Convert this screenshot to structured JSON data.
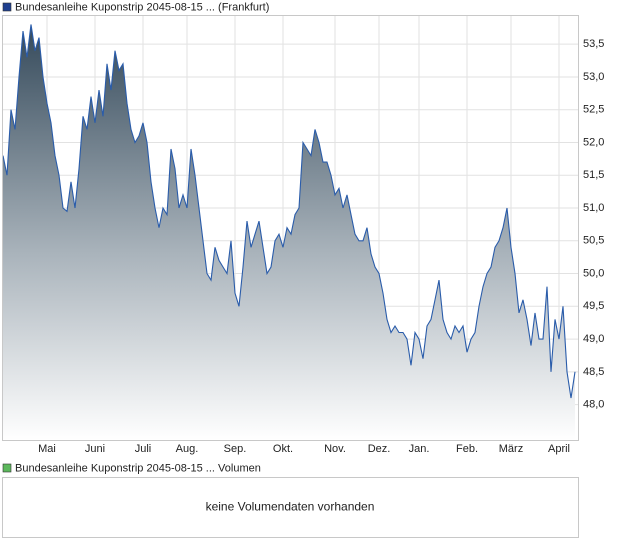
{
  "chart_data": {
    "type": "area",
    "legend_color": "#1f3f8f",
    "categories": [
      null,
      null,
      null,
      null,
      null,
      null,
      null,
      null,
      null,
      null,
      null,
      "Mai",
      null,
      null,
      null,
      null,
      null,
      null,
      null,
      null,
      null,
      null,
      null,
      "Juni",
      null,
      null,
      null,
      null,
      null,
      null,
      null,
      null,
      null,
      null,
      null,
      "Juli",
      null,
      null,
      null,
      null,
      null,
      null,
      null,
      null,
      null,
      null,
      "Aug.",
      null,
      null,
      null,
      null,
      null,
      null,
      null,
      null,
      null,
      null,
      null,
      "Sep.",
      null,
      null,
      null,
      null,
      null,
      null,
      null,
      null,
      null,
      null,
      null,
      "Okt.",
      null,
      null,
      null,
      null,
      null,
      null,
      null,
      null,
      null,
      null,
      null,
      null,
      "Nov.",
      null,
      null,
      null,
      null,
      null,
      null,
      null,
      null,
      null,
      null,
      "Dez.",
      null,
      null,
      null,
      null,
      null,
      null,
      null,
      null,
      null,
      "Jan.",
      null,
      null,
      null,
      null,
      null,
      null,
      null,
      null,
      null,
      null,
      null,
      "Feb.",
      null,
      null,
      null,
      null,
      null,
      null,
      null,
      null,
      null,
      null,
      "März",
      null,
      null,
      null,
      null,
      null,
      null,
      null,
      null,
      null,
      null,
      null,
      "April",
      null,
      null,
      null,
      null
    ],
    "series": [
      {
        "name": "Bundesanleihe Kuponstrip 2045-08-15  ... (Frankfurt)",
        "color": "#2a5caa",
        "values": [
          51.8,
          51.5,
          52.5,
          52.2,
          53.0,
          53.7,
          53.3,
          53.8,
          53.4,
          53.6,
          53.0,
          52.6,
          52.3,
          51.8,
          51.5,
          51.0,
          50.95,
          51.4,
          51.0,
          51.6,
          52.4,
          52.2,
          52.7,
          52.3,
          52.8,
          52.4,
          53.2,
          52.8,
          53.4,
          53.1,
          53.2,
          52.6,
          52.2,
          52.0,
          52.1,
          52.3,
          52.0,
          51.4,
          51.0,
          50.7,
          51.0,
          50.9,
          51.9,
          51.6,
          51.0,
          51.2,
          51.0,
          51.9,
          51.5,
          51.0,
          50.5,
          50.0,
          49.9,
          50.4,
          50.2,
          50.1,
          50.0,
          50.5,
          49.7,
          49.5,
          50.1,
          50.8,
          50.4,
          50.6,
          50.8,
          50.4,
          50.0,
          50.1,
          50.5,
          50.6,
          50.4,
          50.7,
          50.6,
          50.9,
          51.0,
          52.0,
          51.9,
          51.8,
          52.2,
          52.0,
          51.7,
          51.7,
          51.5,
          51.2,
          51.3,
          51.0,
          51.2,
          50.9,
          50.6,
          50.5,
          50.5,
          50.7,
          50.3,
          50.1,
          50.0,
          49.7,
          49.3,
          49.1,
          49.2,
          49.1,
          49.1,
          49.0,
          48.6,
          49.1,
          49.0,
          48.7,
          49.2,
          49.3,
          49.6,
          49.9,
          49.3,
          49.1,
          49.0,
          49.2,
          49.1,
          49.2,
          48.8,
          49.0,
          49.1,
          49.5,
          49.8,
          50.0,
          50.1,
          50.4,
          50.5,
          50.7,
          51.0,
          50.4,
          50.0,
          49.4,
          49.6,
          49.3,
          48.9,
          49.4,
          49.0,
          49.0,
          49.8,
          48.5,
          49.3,
          49.0,
          49.5,
          48.5,
          48.1,
          48.5
        ]
      }
    ],
    "ylim": [
      47.46,
      53.93
    ],
    "yticks": [
      {
        "value": 48.0,
        "label": "48,0"
      },
      {
        "value": 48.5,
        "label": "48,5"
      },
      {
        "value": 49.0,
        "label": "49,0"
      },
      {
        "value": 49.5,
        "label": "49,5"
      },
      {
        "value": 50.0,
        "label": "50,0"
      },
      {
        "value": 50.5,
        "label": "50,5"
      },
      {
        "value": 51.0,
        "label": "51,0"
      },
      {
        "value": 51.5,
        "label": "51,5"
      },
      {
        "value": 52.0,
        "label": "52,0"
      },
      {
        "value": 52.5,
        "label": "52,5"
      },
      {
        "value": 53.0,
        "label": "53,0"
      },
      {
        "value": 53.5,
        "label": "53,5"
      }
    ],
    "grid": true
  },
  "volume_panel": {
    "legend": "Bundesanleihe Kuponstrip 2045-08-15  ... Volumen",
    "color": "#5cb85c",
    "message": "keine Volumendaten vorhanden"
  }
}
